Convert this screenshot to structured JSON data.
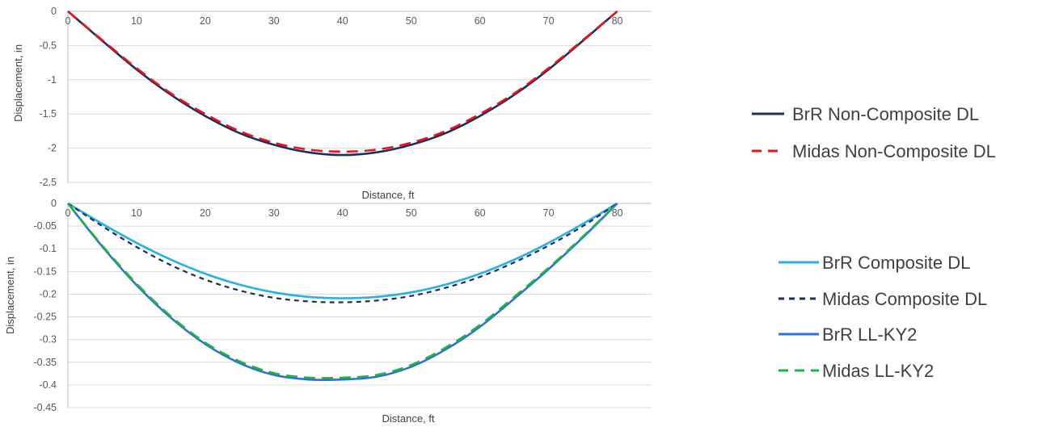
{
  "chart_data": [
    {
      "type": "line",
      "xlabel": "Distance, ft",
      "ylabel": "Displacement, in",
      "xlim": [
        0,
        85
      ],
      "ylim": [
        -2.5,
        0
      ],
      "xticks": [
        "0",
        "10",
        "20",
        "30",
        "40",
        "50",
        "60",
        "70",
        "80"
      ],
      "yticks": [
        "0",
        "-0.5",
        "-1",
        "-1.5",
        "-2",
        "-2.5"
      ],
      "grid": "horizontal",
      "legend": "right",
      "series": [
        {
          "name": "BrR Non-Composite DL",
          "color": "#1f2d5c",
          "dash": "solid",
          "x": [
            0,
            5,
            10,
            15,
            20,
            25,
            30,
            35,
            40,
            45,
            50,
            55,
            60,
            65,
            70,
            75,
            80
          ],
          "y": [
            0,
            -0.43,
            -0.85,
            -1.22,
            -1.53,
            -1.78,
            -1.95,
            -2.06,
            -2.1,
            -2.06,
            -1.95,
            -1.78,
            -1.53,
            -1.22,
            -0.85,
            -0.43,
            0
          ]
        },
        {
          "name": "Midas Non-Composite DL",
          "color": "#e8131b",
          "dash": "dashed",
          "x": [
            0,
            5,
            10,
            15,
            20,
            25,
            30,
            35,
            40,
            45,
            50,
            55,
            60,
            65,
            70,
            75,
            80
          ],
          "y": [
            0,
            -0.42,
            -0.83,
            -1.2,
            -1.5,
            -1.75,
            -1.92,
            -2.02,
            -2.05,
            -2.02,
            -1.92,
            -1.75,
            -1.5,
            -1.2,
            -0.83,
            -0.42,
            0
          ]
        }
      ]
    },
    {
      "type": "line",
      "xlabel": "Distance, ft",
      "ylabel": "Displacement, in",
      "xlim": [
        0,
        85
      ],
      "ylim": [
        -0.45,
        0
      ],
      "xticks": [
        "0",
        "10",
        "20",
        "30",
        "40",
        "50",
        "60",
        "70",
        "80"
      ],
      "yticks": [
        "0",
        "-0.05",
        "-0.1",
        "-0.15",
        "-0.2",
        "-0.25",
        "-0.3",
        "-0.35",
        "-0.4",
        "-0.45"
      ],
      "grid": "horizontal",
      "legend": "right",
      "series": [
        {
          "name": "BrR Composite DL",
          "color": "#2ab0e4",
          "dash": "solid",
          "x": [
            0,
            5,
            10,
            15,
            20,
            25,
            30,
            35,
            40,
            45,
            50,
            55,
            60,
            65,
            70,
            75,
            80
          ],
          "y": [
            0,
            -0.045,
            -0.087,
            -0.124,
            -0.155,
            -0.179,
            -0.196,
            -0.206,
            -0.209,
            -0.206,
            -0.196,
            -0.179,
            -0.155,
            -0.124,
            -0.087,
            -0.045,
            0
          ]
        },
        {
          "name": "Midas Composite DL",
          "color": "#1f2d5c",
          "dash": "short-dash",
          "x": [
            0,
            5,
            10,
            15,
            20,
            25,
            30,
            35,
            40,
            45,
            50,
            55,
            60,
            65,
            70,
            75,
            80
          ],
          "y": [
            0,
            -0.05,
            -0.096,
            -0.136,
            -0.168,
            -0.192,
            -0.208,
            -0.216,
            -0.218,
            -0.214,
            -0.204,
            -0.186,
            -0.162,
            -0.13,
            -0.093,
            -0.05,
            0
          ]
        },
        {
          "name": "BrR LL-KY2",
          "color": "#2f6fd6",
          "dash": "solid",
          "x": [
            0,
            5,
            10,
            15,
            20,
            25,
            30,
            35,
            40,
            45,
            50,
            55,
            60,
            65,
            70,
            75,
            80
          ],
          "y": [
            0,
            -0.095,
            -0.18,
            -0.252,
            -0.31,
            -0.352,
            -0.378,
            -0.388,
            -0.388,
            -0.382,
            -0.36,
            -0.322,
            -0.272,
            -0.21,
            -0.145,
            -0.075,
            0
          ]
        },
        {
          "name": "Midas LL-KY2",
          "color": "#21b14b",
          "dash": "dashed",
          "x": [
            0,
            5,
            10,
            15,
            20,
            25,
            30,
            35,
            40,
            45,
            50,
            55,
            60,
            65,
            70,
            75,
            80
          ],
          "y": [
            0,
            -0.093,
            -0.177,
            -0.249,
            -0.307,
            -0.348,
            -0.374,
            -0.384,
            -0.384,
            -0.378,
            -0.356,
            -0.318,
            -0.268,
            -0.206,
            -0.142,
            -0.073,
            0
          ]
        }
      ]
    }
  ]
}
